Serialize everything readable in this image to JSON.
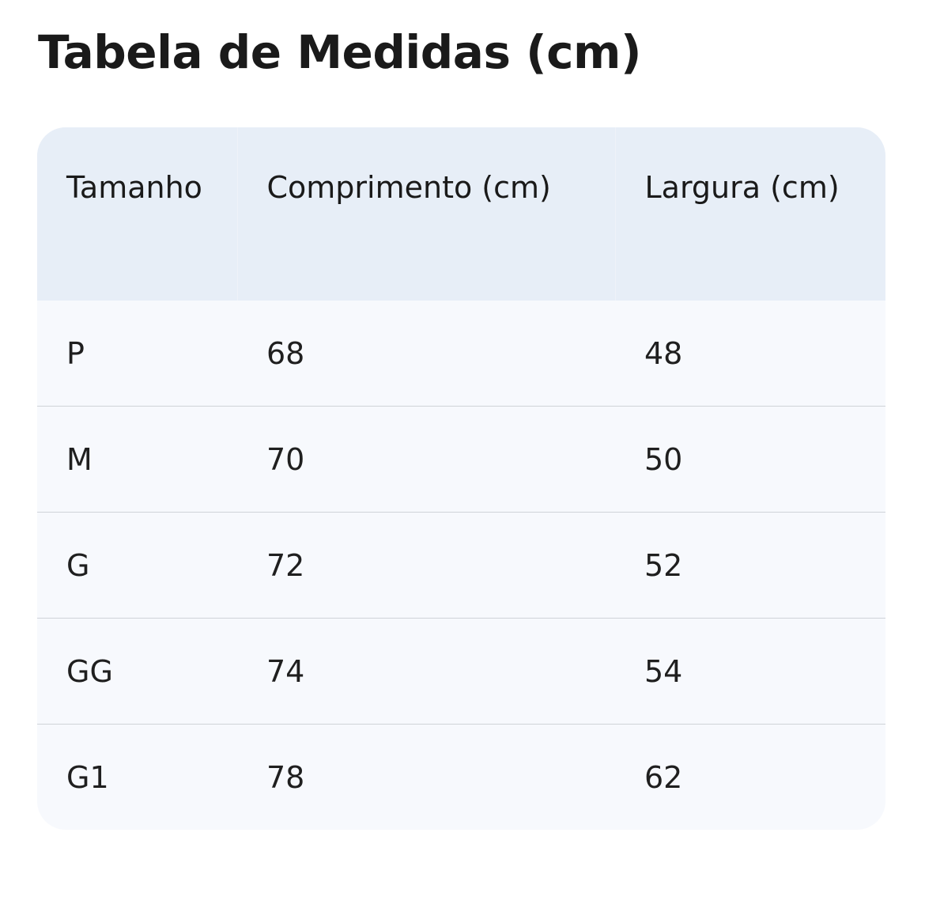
{
  "title": "Tabela de Medidas (cm)",
  "table": {
    "headers": [
      "Tamanho",
      "Comprimento (cm)",
      "Largura (cm)"
    ],
    "rows": [
      [
        "P",
        "68",
        "48"
      ],
      [
        "M",
        "70",
        "50"
      ],
      [
        "G",
        "72",
        "52"
      ],
      [
        "GG",
        "74",
        "54"
      ],
      [
        "G1",
        "78",
        "62"
      ]
    ]
  },
  "colors": {
    "header_bg": "#e7eef7",
    "body_bg": "#f7f9fd",
    "divider": "#cfd3d8"
  }
}
